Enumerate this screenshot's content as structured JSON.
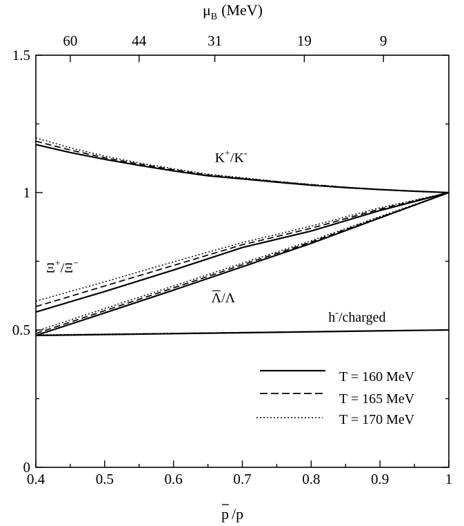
{
  "chart_data": {
    "type": "line",
    "xlabel_main": "p",
    "xlabel_bar": "p",
    "xlabel_sep": "/",
    "top_axis_label_mu": "μ",
    "top_axis_label_sub": "B",
    "top_axis_label_unit": "(MeV)",
    "xlim": [
      0.4,
      1.0
    ],
    "ylim": [
      0,
      1.5
    ],
    "x_ticks": [
      0.4,
      0.5,
      0.6,
      0.7,
      0.8,
      0.9,
      1.0
    ],
    "x_tick_labels": [
      "0.4",
      "0.5",
      "0.6",
      "0.7",
      "0.8",
      "0.9",
      "1"
    ],
    "y_ticks": [
      0,
      0.5,
      1.0,
      1.5
    ],
    "y_tick_labels": [
      "0",
      "0.5",
      "1",
      "1.5"
    ],
    "top_ticks": [
      {
        "x": 0.45,
        "label": "60"
      },
      {
        "x": 0.55,
        "label": "44"
      },
      {
        "x": 0.66,
        "label": "31"
      },
      {
        "x": 0.79,
        "label": "19"
      },
      {
        "x": 0.905,
        "label": "9"
      }
    ],
    "legend": {
      "placement": "bottom-right",
      "entries": [
        {
          "label": "T = 160 MeV",
          "style": "solid"
        },
        {
          "label": "T = 165 MeV",
          "style": "dashed"
        },
        {
          "label": "T = 170 MeV",
          "style": "dotted"
        }
      ]
    },
    "annotations": {
      "kaon": {
        "main": "K",
        "sup1": "+",
        "sep": "/K",
        "sup2": "-",
        "x": 0.66,
        "y": 1.11
      },
      "xi": {
        "main": "Ξ",
        "sup1": "+",
        "sep": "/Ξ",
        "sup2": "−",
        "x": 0.415,
        "y": 0.71
      },
      "lambda": {
        "bar": "Λ",
        "sep": "/Λ",
        "x": 0.655,
        "y": 0.6
      },
      "hminus": {
        "main": "h",
        "sup": "-",
        "rest": "/charged",
        "x": 0.825,
        "y": 0.53
      }
    },
    "series": [
      {
        "group": "K+/K-",
        "style": "solid",
        "x": [
          0.4,
          0.45,
          0.5,
          0.55,
          0.6,
          0.65,
          0.7,
          0.75,
          0.8,
          0.85,
          0.9,
          0.95,
          1.0
        ],
        "y": [
          1.175,
          1.146,
          1.121,
          1.099,
          1.079,
          1.061,
          1.05,
          1.038,
          1.027,
          1.018,
          1.011,
          1.005,
          1.0
        ]
      },
      {
        "group": "K+/K-",
        "style": "dashed",
        "x": [
          0.4,
          0.45,
          0.5,
          0.55,
          0.6,
          0.65,
          0.7,
          0.75,
          0.8,
          0.85,
          0.9,
          0.95,
          1.0
        ],
        "y": [
          1.187,
          1.155,
          1.127,
          1.104,
          1.083,
          1.064,
          1.052,
          1.04,
          1.029,
          1.019,
          1.011,
          1.005,
          1.0
        ]
      },
      {
        "group": "K+/K-",
        "style": "dotted",
        "x": [
          0.4,
          0.45,
          0.5,
          0.55,
          0.6,
          0.65,
          0.7,
          0.75,
          0.8,
          0.85,
          0.9,
          0.95,
          1.0
        ],
        "y": [
          1.199,
          1.163,
          1.133,
          1.108,
          1.087,
          1.067,
          1.054,
          1.041,
          1.03,
          1.02,
          1.012,
          1.005,
          1.0
        ]
      },
      {
        "group": "Xi+/Xi-",
        "style": "solid",
        "x": [
          0.4,
          0.5,
          0.6,
          0.7,
          0.8,
          0.9,
          1.0
        ],
        "y": [
          0.565,
          0.64,
          0.718,
          0.8,
          0.86,
          0.935,
          1.0
        ]
      },
      {
        "group": "Xi+/Xi-",
        "style": "dashed",
        "x": [
          0.4,
          0.5,
          0.6,
          0.7,
          0.8,
          0.9,
          1.0
        ],
        "y": [
          0.585,
          0.66,
          0.735,
          0.81,
          0.87,
          0.94,
          1.0
        ]
      },
      {
        "group": "Xi+/Xi-",
        "style": "dotted",
        "x": [
          0.4,
          0.5,
          0.6,
          0.7,
          0.8,
          0.9,
          1.0
        ],
        "y": [
          0.605,
          0.675,
          0.748,
          0.818,
          0.878,
          0.945,
          1.0
        ]
      },
      {
        "group": "Lambdabar/Lambda",
        "style": "solid",
        "x": [
          0.4,
          0.5,
          0.6,
          0.7,
          0.8,
          0.9,
          1.0
        ],
        "y": [
          0.48,
          0.562,
          0.645,
          0.73,
          0.815,
          0.908,
          1.0
        ]
      },
      {
        "group": "Lambdabar/Lambda",
        "style": "dashed",
        "x": [
          0.4,
          0.5,
          0.6,
          0.7,
          0.8,
          0.9,
          1.0
        ],
        "y": [
          0.487,
          0.57,
          0.653,
          0.737,
          0.82,
          0.91,
          1.0
        ]
      },
      {
        "group": "Lambdabar/Lambda",
        "style": "dotted",
        "x": [
          0.4,
          0.5,
          0.6,
          0.7,
          0.8,
          0.9,
          1.0
        ],
        "y": [
          0.495,
          0.578,
          0.66,
          0.743,
          0.825,
          0.913,
          1.0
        ]
      },
      {
        "group": "h-/charged",
        "style": "solid",
        "x": [
          0.4,
          1.0
        ],
        "y": [
          0.48,
          0.5
        ]
      },
      {
        "group": "h-/charged",
        "style": "dashed",
        "x": [
          0.4,
          1.0
        ],
        "y": [
          0.481,
          0.5
        ]
      },
      {
        "group": "h-/charged",
        "style": "dotted",
        "x": [
          0.4,
          1.0
        ],
        "y": [
          0.482,
          0.5
        ]
      }
    ]
  }
}
